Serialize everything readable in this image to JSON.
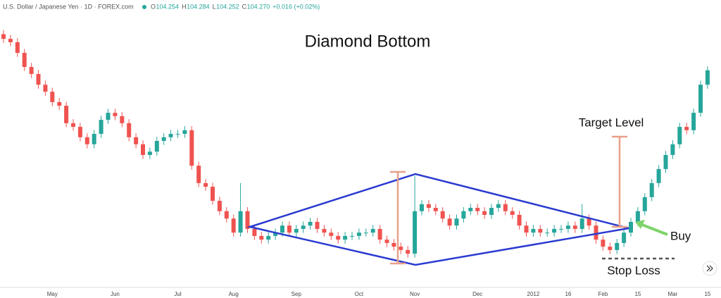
{
  "header": {
    "symbol": "U.S. Dollar / Japanese Yen · 1D · FOREX.com",
    "ohlc": [
      {
        "label": "O",
        "value": "104.254"
      },
      {
        "label": "H",
        "value": "104.284"
      },
      {
        "label": "L",
        "value": "104.252"
      },
      {
        "label": "C",
        "value": "104.270"
      }
    ],
    "change": "+0.016 (+0.02%)"
  },
  "chart_data": {
    "type": "candlestick",
    "title": "Diamond Bottom",
    "annotations": {
      "target": "Target Level",
      "buy": "Buy",
      "stop": "Stop Loss"
    },
    "up_color": "#26a69a",
    "down_color": "#ef5350",
    "ylim": [
      75.5,
      83.5
    ],
    "categories": [
      null,
      null,
      null,
      null,
      null,
      null,
      null,
      "May",
      null,
      null,
      null,
      null,
      null,
      null,
      null,
      null,
      "Jun",
      null,
      null,
      null,
      null,
      null,
      null,
      null,
      null,
      "Jul",
      null,
      null,
      null,
      null,
      null,
      null,
      null,
      "Aug",
      null,
      null,
      null,
      null,
      null,
      null,
      null,
      null,
      "Sep",
      null,
      null,
      null,
      null,
      null,
      null,
      null,
      null,
      "Oct",
      null,
      null,
      null,
      null,
      null,
      null,
      null,
      "Nov",
      null,
      null,
      null,
      null,
      null,
      null,
      null,
      null,
      "Dec",
      null,
      null,
      null,
      null,
      null,
      null,
      null,
      "2012",
      null,
      null,
      null,
      null,
      "16",
      null,
      null,
      null,
      null,
      "Feb",
      null,
      null,
      null,
      null,
      "15",
      null,
      null,
      null,
      null,
      "Mar",
      null,
      null,
      null,
      null,
      "15"
    ],
    "open": [
      82.9,
      82.76,
      82.66,
      82.34,
      81.92,
      81.71,
      81.39,
      81.18,
      80.87,
      80.76,
      80.24,
      80.13,
      79.82,
      79.61,
      79.92,
      80.34,
      80.55,
      80.45,
      80.24,
      79.82,
      79.61,
      79.29,
      79.39,
      79.71,
      79.82,
      79.92,
      79.92,
      80.03,
      78.97,
      78.45,
      78.34,
      77.92,
      77.61,
      77.39,
      76.97,
      77.61,
      77.08,
      76.87,
      76.76,
      76.87,
      76.97,
      77.18,
      76.97,
      77.08,
      77.18,
      77.29,
      77.08,
      76.97,
      76.87,
      76.76,
      76.87,
      76.87,
      76.97,
      76.97,
      77.08,
      76.76,
      76.66,
      76.55,
      76.45,
      76.34,
      77.61,
      77.82,
      77.71,
      77.61,
      77.39,
      77.18,
      77.39,
      77.61,
      77.71,
      77.61,
      77.5,
      77.71,
      77.82,
      77.61,
      77.5,
      77.18,
      76.97,
      77.08,
      76.97,
      76.97,
      77.08,
      77.08,
      77.18,
      77.08,
      77.39,
      77.18,
      76.76,
      76.55,
      76.45,
      76.66,
      76.97,
      77.29,
      77.61,
      78.03,
      78.45,
      78.87,
      79.29,
      79.61,
      80.13,
      80.03,
      80.55,
      81.39
    ],
    "high": [
      83.02,
      82.88,
      82.78,
      82.46,
      82.04,
      81.83,
      81.51,
      81.3,
      80.99,
      80.88,
      80.36,
      80.25,
      79.94,
      80.04,
      80.46,
      80.67,
      80.67,
      80.57,
      80.36,
      79.94,
      79.73,
      79.51,
      79.83,
      79.94,
      80.04,
      80.04,
      80.15,
      80.15,
      79.09,
      78.57,
      78.46,
      78.04,
      77.73,
      77.51,
      78.45,
      77.73,
      77.2,
      76.99,
      76.99,
      77.09,
      77.3,
      77.3,
      77.2,
      77.3,
      77.41,
      77.41,
      77.2,
      77.09,
      76.99,
      76.99,
      76.99,
      77.09,
      77.09,
      77.2,
      77.2,
      76.88,
      76.78,
      76.67,
      76.57,
      78.66,
      77.94,
      77.94,
      77.83,
      77.73,
      77.51,
      77.51,
      77.73,
      77.83,
      77.83,
      77.73,
      77.83,
      77.94,
      77.94,
      77.73,
      77.62,
      77.3,
      77.2,
      77.2,
      77.09,
      77.2,
      77.2,
      77.3,
      77.3,
      77.82,
      77.51,
      77.3,
      76.88,
      76.67,
      76.78,
      77.09,
      77.41,
      77.73,
      78.15,
      78.57,
      78.99,
      79.41,
      79.73,
      80.25,
      80.25,
      80.67,
      81.51,
      81.94
    ],
    "low": [
      82.64,
      82.54,
      82.22,
      81.8,
      81.59,
      81.27,
      81.06,
      80.75,
      80.64,
      80.12,
      80.01,
      79.7,
      79.49,
      79.49,
      79.8,
      80.22,
      80.33,
      80.12,
      79.7,
      79.49,
      79.17,
      79.17,
      79.27,
      79.59,
      79.7,
      79.8,
      79.8,
      78.85,
      78.33,
      78.22,
      77.8,
      77.49,
      77.27,
      76.85,
      76.85,
      76.96,
      76.75,
      76.64,
      76.64,
      76.75,
      76.85,
      76.85,
      76.85,
      76.96,
      77.06,
      76.96,
      76.85,
      76.75,
      76.64,
      76.64,
      76.75,
      76.75,
      76.85,
      76.85,
      76.64,
      76.54,
      76.43,
      76.33,
      76.22,
      76.22,
      77.49,
      77.59,
      77.49,
      77.27,
      77.06,
      77.06,
      77.27,
      77.49,
      77.49,
      77.38,
      77.38,
      77.59,
      77.49,
      77.38,
      77.06,
      76.85,
      76.85,
      76.85,
      76.85,
      76.85,
      76.96,
      76.96,
      76.96,
      76.96,
      77.06,
      76.64,
      76.43,
      76.33,
      76.33,
      76.54,
      76.85,
      77.17,
      77.49,
      77.91,
      78.33,
      78.75,
      79.17,
      79.49,
      79.91,
      79.91,
      80.43,
      81.27
    ],
    "close": [
      82.76,
      82.66,
      82.34,
      81.92,
      81.71,
      81.39,
      81.18,
      80.87,
      80.76,
      80.24,
      80.13,
      79.82,
      79.61,
      79.92,
      80.34,
      80.55,
      80.45,
      80.24,
      79.82,
      79.61,
      79.29,
      79.39,
      79.71,
      79.82,
      79.92,
      79.92,
      80.03,
      78.97,
      78.45,
      78.34,
      77.92,
      77.61,
      77.39,
      76.97,
      77.61,
      77.08,
      76.87,
      76.76,
      76.87,
      76.97,
      77.18,
      76.97,
      77.08,
      77.18,
      77.29,
      77.08,
      76.97,
      76.87,
      76.76,
      76.87,
      76.87,
      76.97,
      76.97,
      77.08,
      76.76,
      76.66,
      76.55,
      76.45,
      76.34,
      77.61,
      77.82,
      77.71,
      77.61,
      77.39,
      77.18,
      77.39,
      77.61,
      77.71,
      77.61,
      77.5,
      77.71,
      77.82,
      77.61,
      77.5,
      77.18,
      76.97,
      77.08,
      76.97,
      76.97,
      77.08,
      77.08,
      77.18,
      77.08,
      77.39,
      77.18,
      76.76,
      76.55,
      76.45,
      76.66,
      76.97,
      77.29,
      77.61,
      78.03,
      78.45,
      78.87,
      79.29,
      79.61,
      80.13,
      80.03,
      80.55,
      81.39,
      81.82
    ]
  }
}
